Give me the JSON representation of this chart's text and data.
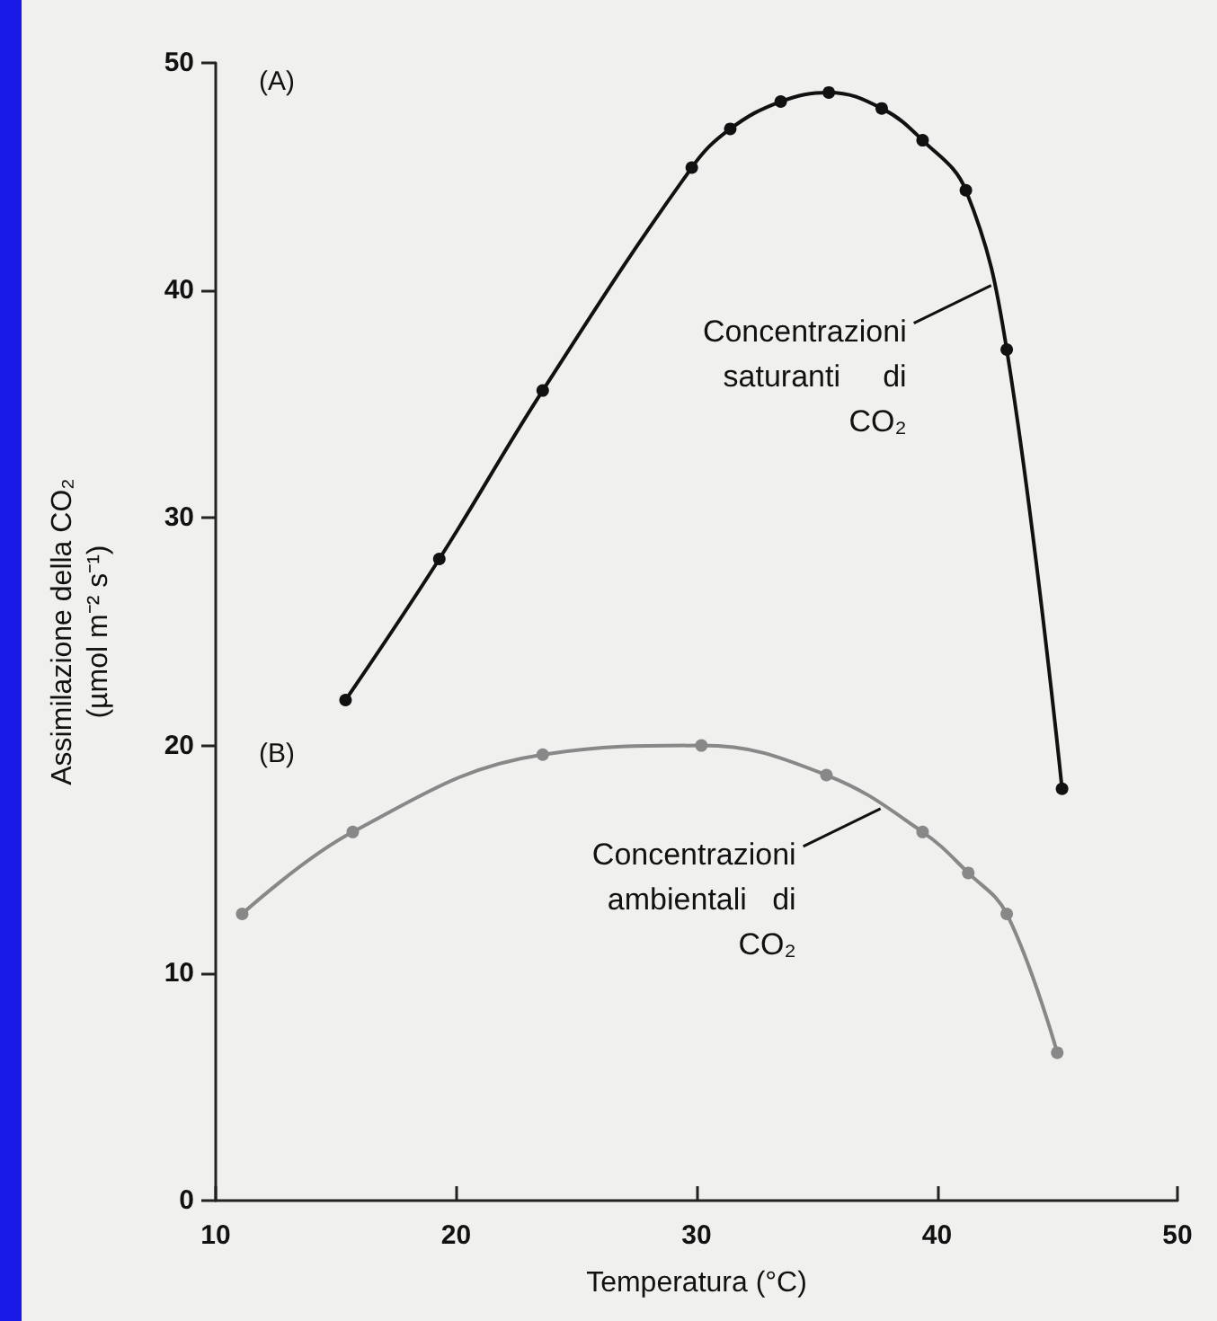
{
  "chart_data": {
    "type": "line",
    "xlabel": "Temperatura (°C)",
    "ylabel": "Assimilazione della CO₂\n(µmol m⁻² s⁻¹)",
    "xlim": [
      10,
      50
    ],
    "xticks": [
      10,
      20,
      30,
      40,
      50
    ],
    "ylim": [
      0,
      50
    ],
    "yticks": [
      0,
      10,
      20,
      30,
      40,
      50
    ],
    "grid": false,
    "marker": "circle",
    "line_style": "solid",
    "series": [
      {
        "color": "#111111",
        "x": [
          15.4,
          19.3,
          23.6,
          29.8,
          31.4,
          33.5,
          35.5,
          37.7,
          39.4,
          41.2,
          42.9,
          45.2
        ],
        "values": [
          22.0,
          28.2,
          35.6,
          45.4,
          47.1,
          48.3,
          48.7,
          48.0,
          46.6,
          44.4,
          37.4,
          18.1
        ]
      },
      {
        "color": "#888888",
        "x": [
          11.1,
          15.7,
          23.6,
          30.2,
          35.4,
          39.4,
          41.3,
          42.9,
          45.0
        ],
        "values": [
          12.6,
          16.2,
          19.6,
          20.0,
          18.7,
          16.2,
          14.4,
          12.6,
          6.5
        ]
      }
    ],
    "annotations": [
      "(A)",
      "(B)",
      {
        "text": "Concentrazioni\nsaturanti     di\nCO₂",
        "x": 42.4,
        "y": 40.3
      },
      {
        "text": "Concentrazioni\nambientali   di\nCO₂",
        "x": 37.8,
        "y": 17.3
      }
    ]
  }
}
